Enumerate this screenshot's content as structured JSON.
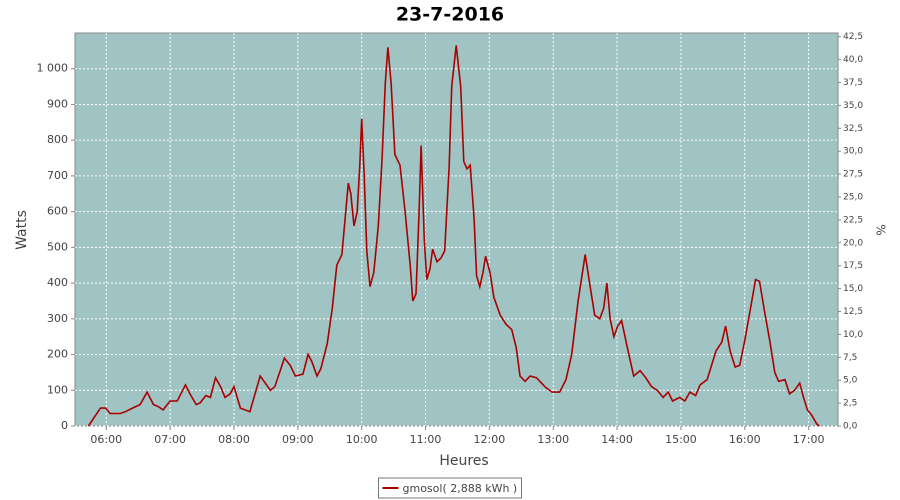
{
  "chart_data": {
    "type": "line",
    "title": "23-7-2016",
    "xlabel": "Heures",
    "ylabel": "Watts",
    "y2label": "%",
    "x": [
      5.72,
      5.91,
      5.99,
      6.06,
      6.22,
      6.3,
      6.41,
      6.53,
      6.64,
      6.74,
      6.81,
      6.89,
      7.0,
      7.11,
      7.24,
      7.31,
      7.41,
      7.47,
      7.56,
      7.63,
      7.71,
      7.79,
      7.86,
      7.94,
      8.0,
      8.1,
      8.25,
      8.41,
      8.49,
      8.57,
      8.64,
      8.79,
      8.88,
      8.96,
      9.08,
      9.16,
      9.22,
      9.3,
      9.36,
      9.46,
      9.54,
      9.61,
      9.69,
      9.79,
      9.83,
      9.88,
      9.93,
      9.97,
      10.0,
      10.04,
      10.08,
      10.13,
      10.19,
      10.26,
      10.32,
      10.37,
      10.41,
      10.46,
      10.52,
      10.6,
      10.68,
      10.76,
      10.8,
      10.85,
      10.9,
      10.93,
      10.98,
      11.02,
      11.07,
      11.11,
      11.18,
      11.24,
      11.3,
      11.37,
      11.41,
      11.48,
      11.55,
      11.6,
      11.65,
      11.7,
      11.76,
      11.8,
      11.85,
      11.9,
      11.94,
      12.01,
      12.07,
      12.17,
      12.26,
      12.35,
      12.42,
      12.48,
      12.56,
      12.64,
      12.74,
      12.87,
      12.98,
      13.1,
      13.2,
      13.29,
      13.39,
      13.5,
      13.57,
      13.65,
      13.73,
      13.79,
      13.84,
      13.89,
      13.95,
      14.01,
      14.07,
      14.16,
      14.26,
      14.36,
      14.45,
      14.54,
      14.63,
      14.72,
      14.8,
      14.87,
      14.98,
      15.06,
      15.14,
      15.23,
      15.3,
      15.41,
      15.48,
      15.55,
      15.64,
      15.7,
      15.77,
      15.85,
      15.92,
      16.0,
      16.08,
      16.17,
      16.23,
      16.31,
      16.39,
      16.47,
      16.53,
      16.63,
      16.7,
      16.78,
      16.86,
      16.92,
      16.98,
      17.05,
      17.13,
      17.17
    ],
    "series": [
      {
        "name": "gmosol( 2,888 kWh )",
        "color": "#aa0000",
        "values": [
          0,
          50,
          50,
          35,
          35,
          40,
          50,
          60,
          95,
          60,
          55,
          45,
          70,
          70,
          115,
          90,
          60,
          65,
          85,
          80,
          135,
          110,
          80,
          90,
          110,
          50,
          40,
          140,
          120,
          100,
          110,
          190,
          170,
          140,
          145,
          200,
          180,
          140,
          160,
          230,
          330,
          450,
          480,
          680,
          650,
          560,
          600,
          730,
          860,
          700,
          490,
          390,
          430,
          560,
          750,
          960,
          1060,
          960,
          760,
          730,
          600,
          450,
          350,
          370,
          600,
          785,
          520,
          410,
          440,
          495,
          460,
          470,
          490,
          730,
          950,
          1065,
          950,
          740,
          720,
          730,
          580,
          420,
          390,
          430,
          475,
          430,
          360,
          310,
          285,
          270,
          220,
          140,
          125,
          140,
          135,
          110,
          95,
          95,
          130,
          200,
          350,
          480,
          400,
          310,
          300,
          330,
          400,
          300,
          250,
          280,
          295,
          220,
          140,
          155,
          135,
          110,
          100,
          80,
          95,
          70,
          80,
          70,
          95,
          85,
          115,
          130,
          170,
          210,
          235,
          280,
          210,
          165,
          170,
          240,
          320,
          410,
          405,
          320,
          240,
          150,
          125,
          130,
          90,
          100,
          120,
          80,
          45,
          30,
          5,
          0
        ]
      }
    ],
    "xlim": [
      5.51,
      17.46
    ],
    "xticks": [
      {
        "value": 6,
        "label": "06:00"
      },
      {
        "value": 7,
        "label": "07:00"
      },
      {
        "value": 8,
        "label": "08:00"
      },
      {
        "value": 9,
        "label": "09:00"
      },
      {
        "value": 10,
        "label": "10:00"
      },
      {
        "value": 11,
        "label": "11:00"
      },
      {
        "value": 12,
        "label": "12:00"
      },
      {
        "value": 13,
        "label": "13:00"
      },
      {
        "value": 14,
        "label": "14:00"
      },
      {
        "value": 15,
        "label": "15:00"
      },
      {
        "value": 16,
        "label": "16:00"
      },
      {
        "value": 17,
        "label": "17:00"
      }
    ],
    "ylim": [
      0,
      1100
    ],
    "yticks": [
      0,
      100,
      200,
      300,
      400,
      500,
      600,
      700,
      800,
      900,
      {
        "value": 1000,
        "label": "1 000"
      }
    ],
    "y2lim": [
      0,
      42.9
    ],
    "y2ticks": [
      {
        "value": 0,
        "label": "0,0"
      },
      {
        "value": 2.5,
        "label": "2,5"
      },
      {
        "value": 5,
        "label": "5,0"
      },
      {
        "value": 7.5,
        "label": "7,5"
      },
      {
        "value": 10,
        "label": "10,0"
      },
      {
        "value": 12.5,
        "label": "12,5"
      },
      {
        "value": 15,
        "label": "15,0"
      },
      {
        "value": 17.5,
        "label": "17,5"
      },
      {
        "value": 20,
        "label": "20,0"
      },
      {
        "value": 22.5,
        "label": "22,5"
      },
      {
        "value": 25,
        "label": "25,0"
      },
      {
        "value": 27.5,
        "label": "27,5"
      },
      {
        "value": 30,
        "label": "30,0"
      },
      {
        "value": 32.5,
        "label": "32,5"
      },
      {
        "value": 35,
        "label": "35,0"
      },
      {
        "value": 37.5,
        "label": "37,5"
      },
      {
        "value": 40,
        "label": "40,0"
      },
      {
        "value": 42.5,
        "label": "42,5"
      }
    ],
    "grid": true,
    "background": "#a0c3c3",
    "legend": "bottom"
  }
}
